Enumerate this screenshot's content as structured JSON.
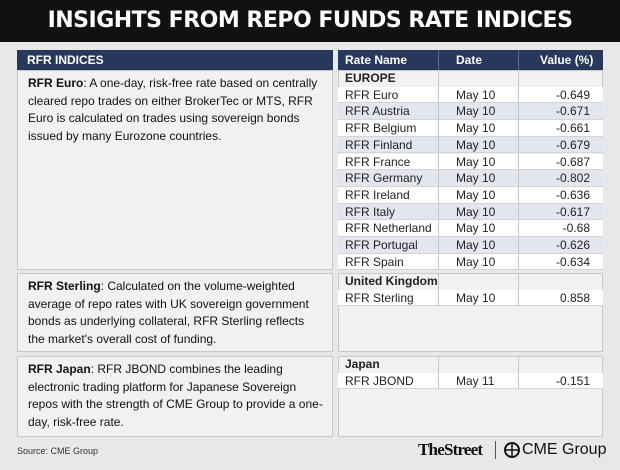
{
  "header": {
    "title": "INSIGHTS FROM REPO FUNDS RATE INDICES"
  },
  "left": {
    "heading": "RFR INDICES",
    "sections": [
      {
        "name": "RFR Euro",
        "text": ": A one-day, risk-free rate based on centrally cleared repo trades on either BrokerTec or MTS, RFR Euro is calculated on trades using sovereign bonds issued by many Eurozone countries."
      },
      {
        "name": "RFR Sterling",
        "text": ": Calculated on the volume-weighted average of repo rates with UK sovereign government bonds as underlying collateral, RFR Sterling reflects the market's overall cost of funding."
      },
      {
        "name": "RFR Japan",
        "text": ": RFR JBOND combines the leading electronic trading platform for Japanese Sovereign repos with the strength of CME Group to provide a one-day, risk-free rate."
      }
    ]
  },
  "table": {
    "columns": [
      "Rate Name",
      "Date",
      "Value (%)"
    ],
    "groups": [
      {
        "name": "EUROPE",
        "rows": [
          [
            "RFR Euro",
            "May 10",
            -0.649
          ],
          [
            "RFR Austria",
            "May 10",
            -0.671
          ],
          [
            "RFR Belgium",
            "May 10",
            -0.661
          ],
          [
            "RFR Finland",
            "May 10",
            -0.679
          ],
          [
            "RFR France",
            "May 10",
            -0.687
          ],
          [
            "RFR Germany",
            "May 10",
            -0.802
          ],
          [
            "RFR Ireland",
            "May 10",
            -0.636
          ],
          [
            "RFR Italy",
            "May 10",
            -0.617
          ],
          [
            "RFR Netherland",
            "May 10",
            -0.68
          ],
          [
            "RFR Portugal",
            "May 10",
            -0.626
          ],
          [
            "RFR Spain",
            "May 10",
            -0.634
          ]
        ]
      },
      {
        "name": "United Kingdom",
        "rows": [
          [
            "RFR Sterling",
            "May 10",
            0.858
          ]
        ]
      },
      {
        "name": "Japan",
        "rows": [
          [
            "RFR JBOND",
            "May 11",
            -0.151
          ]
        ]
      }
    ]
  },
  "footer": {
    "source": "Source: CME Group",
    "brand": "TheStreet",
    "partner": "CME Group"
  }
}
